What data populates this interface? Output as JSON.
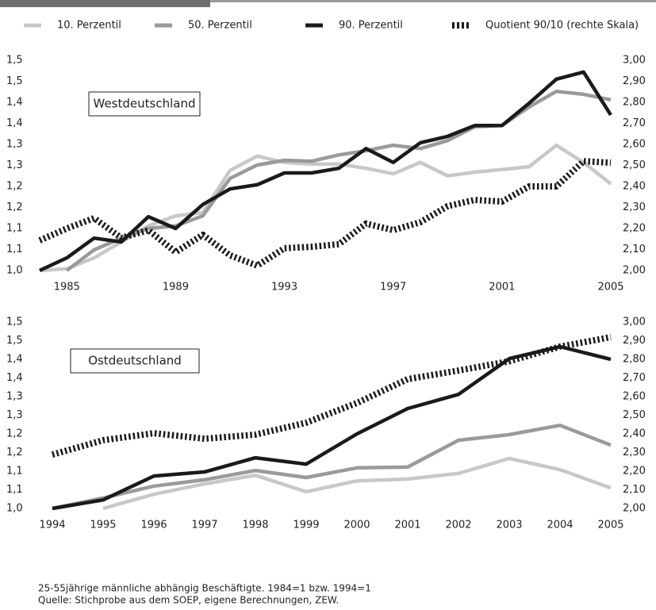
{
  "chart_data": [
    {
      "type": "line",
      "annotation": "Westdeutschland",
      "x": [
        1984,
        1985,
        1986,
        1987,
        1988,
        1989,
        1990,
        1991,
        1992,
        1993,
        1994,
        1995,
        1996,
        1997,
        1998,
        1999,
        2000,
        2001,
        2002,
        2003,
        2004,
        2005
      ],
      "xlim": [
        1984,
        2005
      ],
      "xticks": [
        1985,
        1989,
        1993,
        1997,
        2001,
        2005
      ],
      "ylim": [
        1.0,
        1.5
      ],
      "yticks": [
        {
          "value": 1.0,
          "label": "1,0"
        },
        {
          "value": 1.05,
          "label": "1,1"
        },
        {
          "value": 1.1,
          "label": "1,1"
        },
        {
          "value": 1.15,
          "label": "1,2"
        },
        {
          "value": 1.2,
          "label": "1,2"
        },
        {
          "value": 1.25,
          "label": "1,3"
        },
        {
          "value": 1.3,
          "label": "1,3"
        },
        {
          "value": 1.35,
          "label": "1,4"
        },
        {
          "value": 1.4,
          "label": "1,4"
        },
        {
          "value": 1.45,
          "label": "1,5"
        },
        {
          "value": 1.5,
          "label": "1,5"
        }
      ],
      "y2lim": [
        2.0,
        3.0
      ],
      "y2ticks": [
        {
          "value": 2.0,
          "label": "2,00"
        },
        {
          "value": 2.1,
          "label": "2,10"
        },
        {
          "value": 2.2,
          "label": "2,20"
        },
        {
          "value": 2.3,
          "label": "2,30"
        },
        {
          "value": 2.4,
          "label": "2,40"
        },
        {
          "value": 2.5,
          "label": "2,50"
        },
        {
          "value": 2.6,
          "label": "2,60"
        },
        {
          "value": 2.7,
          "label": "2,70"
        },
        {
          "value": 2.8,
          "label": "2,80"
        },
        {
          "value": 2.9,
          "label": "2,90"
        },
        {
          "value": 3.0,
          "label": "3,00"
        }
      ],
      "series": [
        {
          "name": "10. Perzentil",
          "color": "#c8c8c8",
          "values": [
            1.0,
            1.004,
            1.03,
            1.068,
            1.106,
            1.13,
            1.138,
            1.238,
            1.272,
            1.257,
            1.253,
            1.253,
            1.243,
            1.23,
            1.257,
            1.225,
            1.234,
            1.24,
            1.247,
            1.298,
            1.257,
            1.206
          ]
        },
        {
          "name": "50. Perzentil",
          "color": "#9a9a9a",
          "values": [
            null,
            1.0,
            1.049,
            1.077,
            1.1,
            1.106,
            1.13,
            1.219,
            1.251,
            1.262,
            1.26,
            1.275,
            1.285,
            1.298,
            1.29,
            1.309,
            1.342,
            1.345,
            1.389,
            1.426,
            1.419,
            1.406
          ]
        },
        {
          "name": "90. Perzentil",
          "color": "#1a1a1a",
          "values": [
            1.0,
            1.03,
            1.077,
            1.068,
            1.128,
            1.1,
            1.157,
            1.194,
            1.204,
            1.232,
            1.232,
            1.243,
            1.29,
            1.257,
            1.304,
            1.319,
            1.345,
            1.345,
            1.398,
            1.455,
            1.472,
            1.37
          ]
        },
        {
          "name": "Quotient 90/10 (rechte Skala)",
          "color": "#1a1a1a",
          "linestyle": "dotted",
          "axis": "y2",
          "values": [
            2.143,
            2.2,
            2.249,
            2.155,
            2.192,
            2.087,
            2.17,
            2.072,
            2.023,
            2.106,
            2.113,
            2.125,
            2.223,
            2.192,
            2.23,
            2.306,
            2.336,
            2.328,
            2.4,
            2.4,
            2.52,
            2.513
          ]
        }
      ]
    },
    {
      "type": "line",
      "annotation": "Ostdeutschland",
      "x": [
        1994,
        1995,
        1996,
        1997,
        1998,
        1999,
        2000,
        2001,
        2002,
        2003,
        2004,
        2005
      ],
      "xlim": [
        1994,
        2005
      ],
      "xticks": [
        1994,
        1995,
        1996,
        1997,
        1998,
        1999,
        2000,
        2001,
        2002,
        2003,
        2004,
        2005
      ],
      "ylim": [
        1.0,
        1.5
      ],
      "yticks": [
        {
          "value": 1.0,
          "label": "1,0"
        },
        {
          "value": 1.05,
          "label": "1,1"
        },
        {
          "value": 1.1,
          "label": "1,1"
        },
        {
          "value": 1.15,
          "label": "1,2"
        },
        {
          "value": 1.2,
          "label": "1,2"
        },
        {
          "value": 1.25,
          "label": "1,3"
        },
        {
          "value": 1.3,
          "label": "1,3"
        },
        {
          "value": 1.35,
          "label": "1,4"
        },
        {
          "value": 1.4,
          "label": "1,4"
        },
        {
          "value": 1.45,
          "label": "1,5"
        },
        {
          "value": 1.5,
          "label": "1,5"
        }
      ],
      "y2lim": [
        2.0,
        3.0
      ],
      "y2ticks": [
        {
          "value": 2.0,
          "label": "2,00"
        },
        {
          "value": 2.1,
          "label": "2,10"
        },
        {
          "value": 2.2,
          "label": "2,20"
        },
        {
          "value": 2.3,
          "label": "2,30"
        },
        {
          "value": 2.4,
          "label": "2,40"
        },
        {
          "value": 2.5,
          "label": "2,50"
        },
        {
          "value": 2.6,
          "label": "2,60"
        },
        {
          "value": 2.7,
          "label": "2,70"
        },
        {
          "value": 2.8,
          "label": "2,80"
        },
        {
          "value": 2.9,
          "label": "2,90"
        },
        {
          "value": 3.0,
          "label": "3,00"
        }
      ],
      "series": [
        {
          "color": "#c8c8c8",
          "values": [
            null,
            1.0,
            1.038,
            1.066,
            1.089,
            1.045,
            1.074,
            1.079,
            1.094,
            1.134,
            1.104,
            1.055
          ]
        },
        {
          "color": "#9a9a9a",
          "values": [
            1.0,
            1.028,
            1.06,
            1.077,
            1.102,
            1.083,
            1.109,
            1.111,
            1.183,
            1.198,
            1.223,
            1.17
          ]
        },
        {
          "color": "#1a1a1a",
          "values": [
            1.0,
            1.023,
            1.087,
            1.098,
            1.136,
            1.119,
            1.2,
            1.268,
            1.306,
            1.402,
            1.434,
            1.4
          ]
        },
        {
          "color": "#1a1a1a",
          "linestyle": "dotted",
          "axis": "y2",
          "values": [
            2.289,
            2.366,
            2.404,
            2.374,
            2.396,
            2.46,
            2.566,
            2.694,
            2.74,
            2.79,
            2.868,
            2.919
          ]
        }
      ]
    }
  ],
  "footnotes": [
    "25-55jährige männliche abhängig Beschäftigte. 1984=1 bzw. 1994=1",
    "Quelle: Stichprobe aus dem SOEP, eigene Berechnungen, ZEW."
  ]
}
